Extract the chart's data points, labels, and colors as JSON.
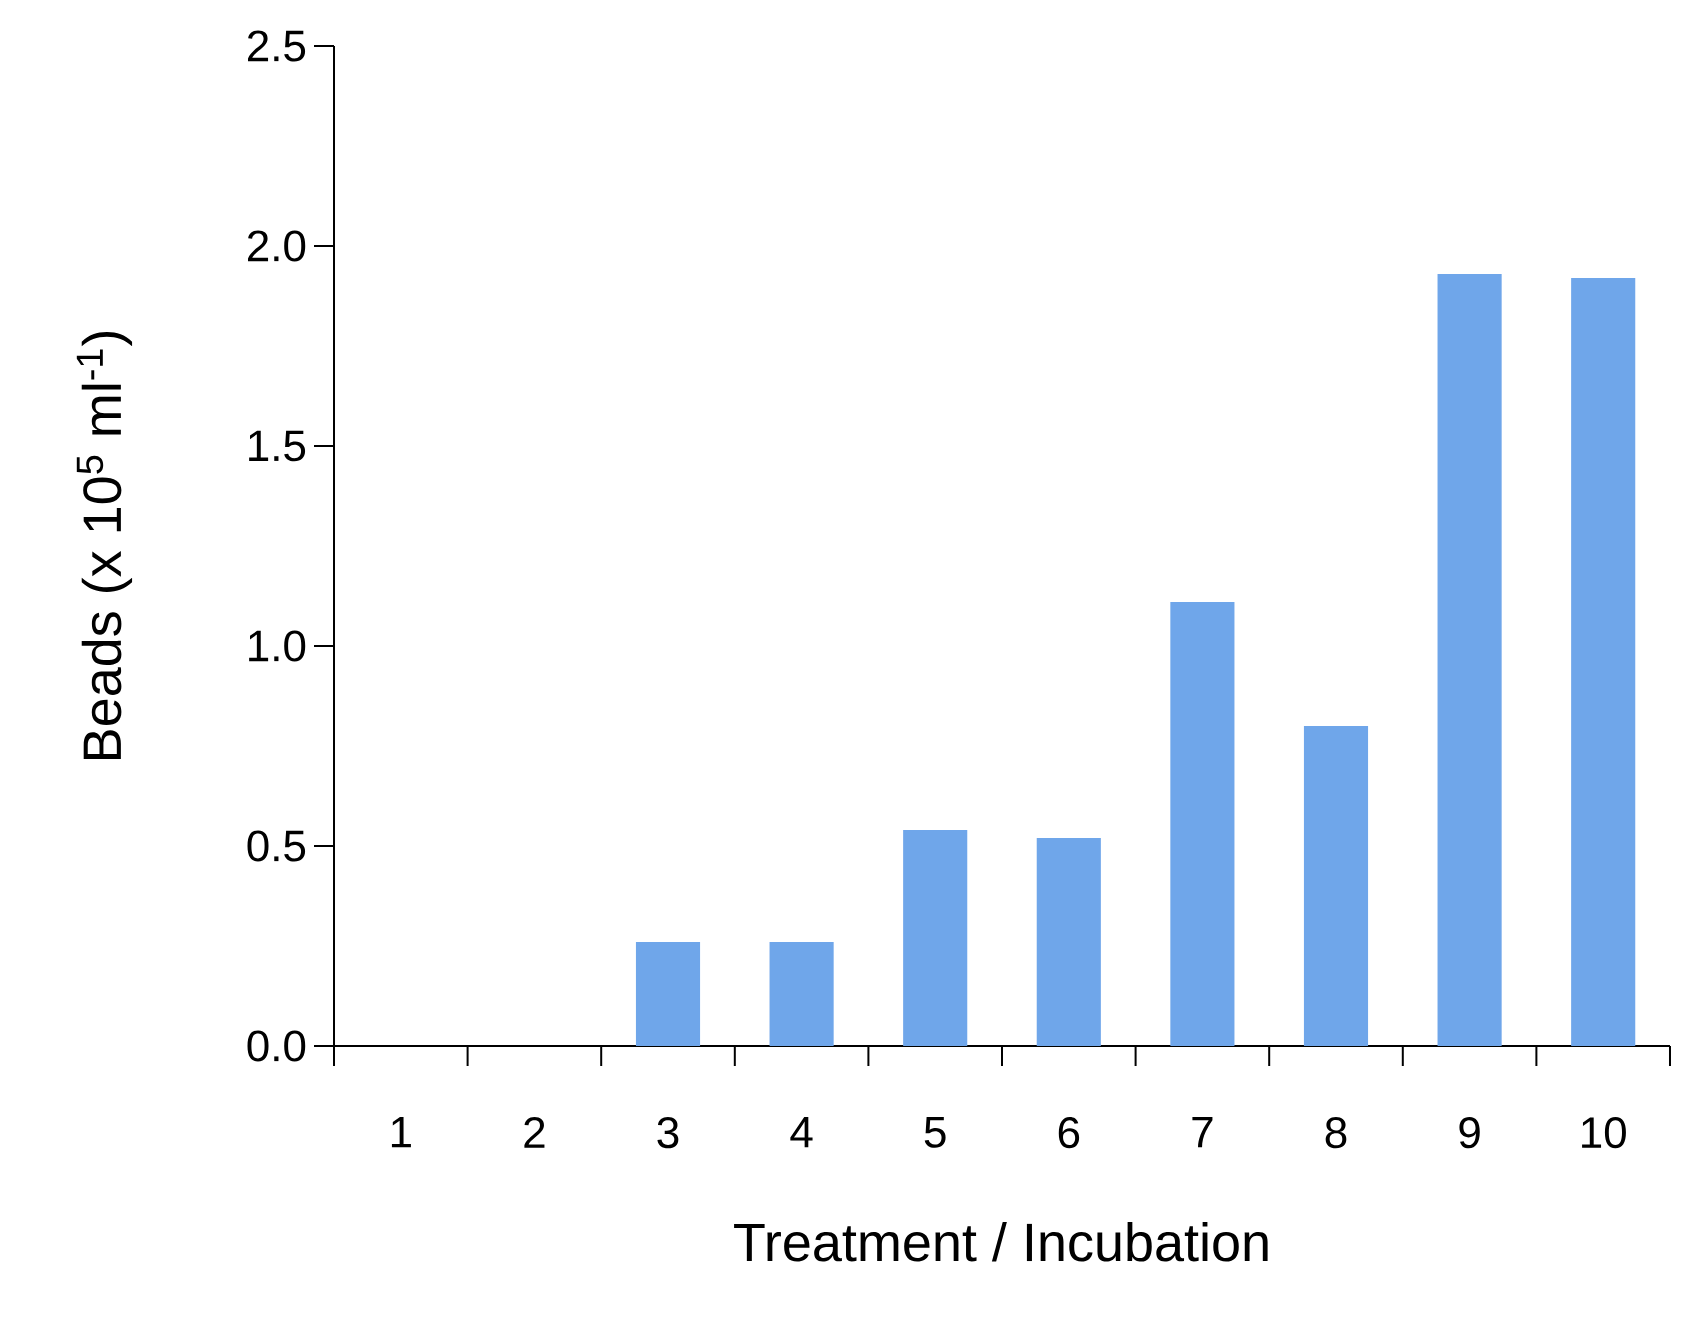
{
  "chart_data": {
    "type": "bar",
    "xlabel": "Treatment / Incubation",
    "ylabel": "Beads (x 10$^{5}$ ml$^{-1}$)",
    "categories": [
      "1",
      "2",
      "3",
      "4",
      "5",
      "6",
      "7",
      "8",
      "9",
      "10"
    ],
    "values": [
      0,
      0,
      0.26,
      0.26,
      0.54,
      0.52,
      1.11,
      0.8,
      1.93,
      1.92
    ],
    "color": "#6fa6ea",
    "ylim": [
      0,
      2.5
    ],
    "yticks": [
      {
        "value": 0,
        "label": "0.0"
      },
      {
        "value": 0.5,
        "label": "0.5"
      },
      {
        "value": 1,
        "label": "1.0"
      },
      {
        "value": 1.5,
        "label": "1.5"
      },
      {
        "value": 2,
        "label": "2.0"
      },
      {
        "value": 2.5,
        "label": "2.5"
      }
    ],
    "grid": false
  }
}
